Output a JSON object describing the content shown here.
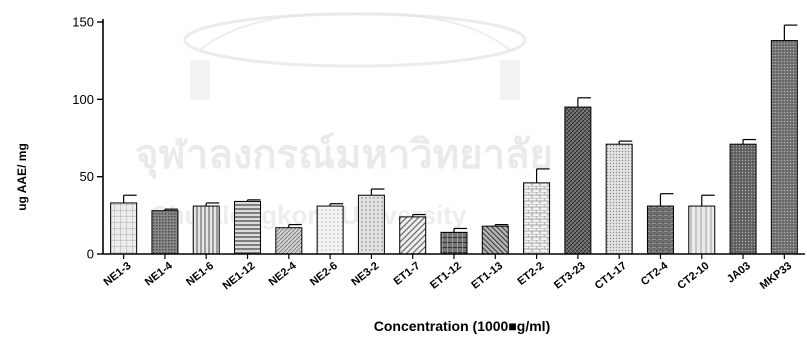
{
  "watermark": {
    "thai_text": "จุฬาลงกรณ์มหาวิทยาลัย",
    "latin_text": "Chulalongkorn University"
  },
  "chart_data": {
    "type": "bar",
    "title": "",
    "xlabel": "Concentration (1000■g/ml)",
    "ylabel": "ug AAE/ mg",
    "ylim": [
      0,
      150
    ],
    "yticks": [
      0,
      50,
      100,
      150
    ],
    "categories": [
      "NE1-3",
      "NE1-4",
      "NE1-6",
      "NE1-12",
      "NE2-4",
      "NE2-6",
      "NE3-2",
      "ET1-7",
      "ET1-12",
      "ET1-13",
      "ET2-2",
      "ET3-23",
      "CT1-17",
      "CT2-4",
      "CT2-10",
      "JA03",
      "MKP33"
    ],
    "values": [
      33,
      28,
      31,
      34,
      17,
      31,
      38,
      24,
      14,
      18,
      46,
      95,
      71,
      31,
      31,
      71,
      138
    ],
    "errors": [
      5,
      1,
      2,
      1,
      2,
      1.5,
      4,
      1.5,
      2.5,
      1,
      9,
      6,
      2,
      8,
      7,
      3,
      10
    ],
    "patterns": [
      "grid",
      "dense",
      "vlines",
      "hlines",
      "hatch-fine",
      "dots-fine",
      "dots",
      "diag-down",
      "hgrid",
      "diag-up",
      "brick",
      "diag-dark",
      "dots-med",
      "brick-dark",
      "vlines-light",
      "dots-coarse",
      "dots-dark"
    ],
    "grid": false,
    "error_bars": true
  }
}
